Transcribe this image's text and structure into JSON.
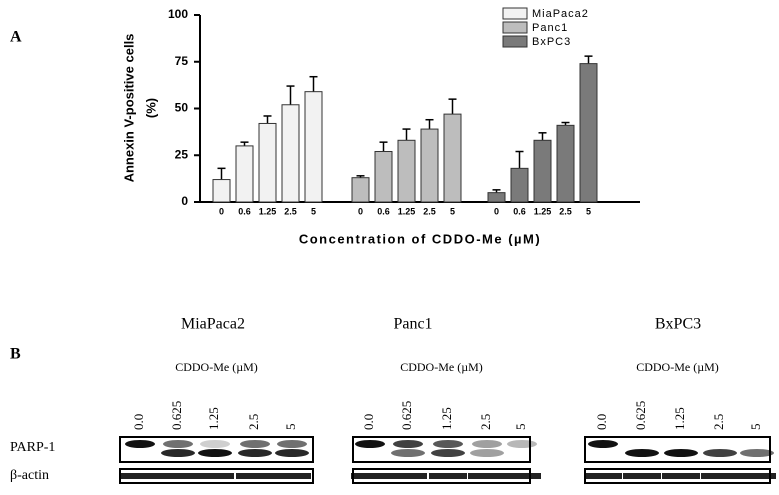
{
  "chart_data": {
    "type": "bar",
    "panel_label": "A",
    "y_label": [
      "Annexin V-positive cells",
      "(%)"
    ],
    "x_label": "Concentration of CDDO-Me (µM)",
    "categories": [
      "0",
      "0.6",
      "1.25",
      "2.5",
      "5",
      "0",
      "0.6",
      "1.25",
      "2.5",
      "5",
      "0",
      "0.6",
      "1.25",
      "2.5",
      "5"
    ],
    "series": [
      {
        "name": "MiaPaca2",
        "color": "#f2f2f2",
        "values": [
          12,
          30,
          42,
          52,
          59,
          null,
          null,
          null,
          null,
          null,
          null,
          null,
          null,
          null,
          null
        ],
        "errors": [
          6,
          2,
          4,
          10,
          8,
          null,
          null,
          null,
          null,
          null,
          null,
          null,
          null,
          null,
          null
        ]
      },
      {
        "name": "Panc1",
        "color": "#bdbdbd",
        "values": [
          null,
          null,
          null,
          null,
          null,
          13,
          27,
          33,
          39,
          47,
          null,
          null,
          null,
          null,
          null
        ],
        "errors": [
          null,
          null,
          null,
          null,
          null,
          1,
          5,
          6,
          5,
          8,
          null,
          null,
          null,
          null,
          null
        ]
      },
      {
        "name": "BxPC3",
        "color": "#7a7a7a",
        "values": [
          null,
          null,
          null,
          null,
          null,
          null,
          null,
          null,
          null,
          null,
          5,
          18,
          33,
          41,
          74
        ],
        "errors": [
          null,
          null,
          null,
          null,
          null,
          null,
          null,
          null,
          null,
          null,
          1.5,
          9,
          4,
          1.5,
          4
        ]
      }
    ],
    "ylim": [
      0,
      100
    ],
    "yticks": [
      0,
      25,
      50,
      75,
      100
    ],
    "legend": "upper right"
  },
  "blot": {
    "panel_label": "B",
    "row_labels": [
      "PARP-1",
      "β-actin"
    ],
    "panels": [
      {
        "cell_line": "MiaPaca2",
        "treatment": "CDDO-Me (µM)",
        "lanes": [
          "0.0",
          "0.625",
          "1.25",
          "2.5",
          "5"
        ]
      },
      {
        "cell_line": "Panc1",
        "treatment": "CDDO-Me (µM)",
        "lanes": [
          "0.0",
          "0.625",
          "1.25",
          "2.5",
          "5"
        ]
      },
      {
        "cell_line": "BxPC3",
        "treatment": "CDDO-Me (µM)",
        "lanes": [
          "0.0",
          "0.625",
          "1.25",
          "2.5",
          "5"
        ]
      }
    ]
  }
}
